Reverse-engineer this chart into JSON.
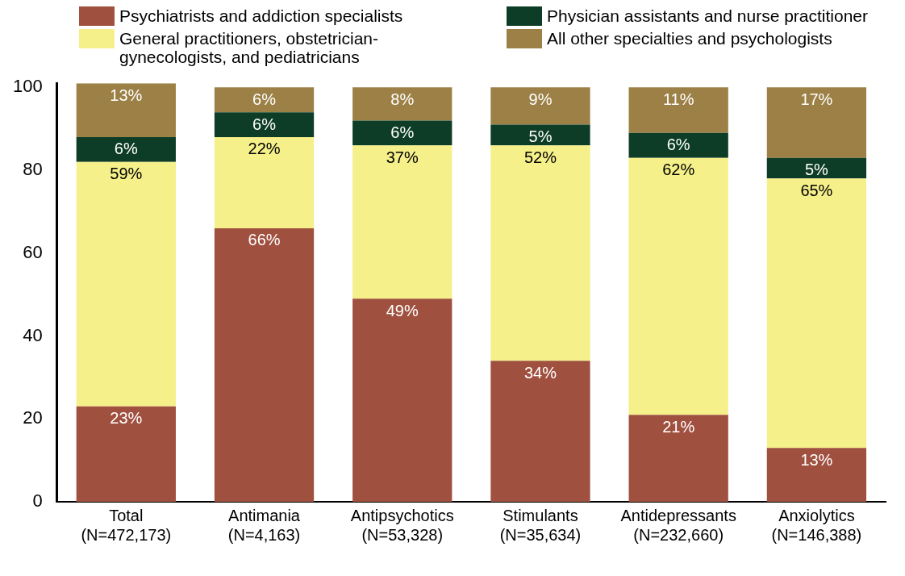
{
  "chart_data": {
    "type": "bar",
    "stacked": true,
    "legend": "top",
    "grid": false,
    "categories": [
      "Total\n(N=472,173)",
      "Antimania\n(N=4,163)",
      "Antipsychotics\n(N=53,328)",
      "Stimulants\n(N=35,634)",
      "Antidepressants\n(N=232,660)",
      "Anxiolytics\n(N=146,388)"
    ],
    "series": [
      {
        "name": "Psychiatrists and addiction specialists",
        "color": "#a0503f",
        "values": [
          23,
          66,
          49,
          34,
          21,
          13
        ],
        "value_labels": [
          "23%",
          "66%",
          "49%",
          "34%",
          "21%",
          "13%"
        ]
      },
      {
        "name": "General practitioners, obstetrician-gynecologists, and pediatricians",
        "color": "#f5f08a",
        "values": [
          59,
          22,
          37,
          52,
          62,
          65
        ],
        "value_labels": [
          "59%",
          "22%",
          "37%",
          "52%",
          "62%",
          "65%"
        ]
      },
      {
        "name": "Physician assistants and nurse practitioner",
        "color": "#0d3d26",
        "values": [
          6,
          6,
          6,
          5,
          6,
          5
        ],
        "value_labels": [
          "6%",
          "6%",
          "6%",
          "5%",
          "6%",
          "5%"
        ]
      },
      {
        "name": "All other specialties and psychologists",
        "color": "#9c8045",
        "values": [
          13,
          6,
          8,
          9,
          11,
          17
        ],
        "value_labels": [
          "13%",
          "6%",
          "8%",
          "9%",
          "11%",
          "17%"
        ]
      }
    ],
    "ylim": [
      0,
      101
    ],
    "yticks": [
      0,
      20,
      40,
      60,
      80,
      100
    ]
  }
}
